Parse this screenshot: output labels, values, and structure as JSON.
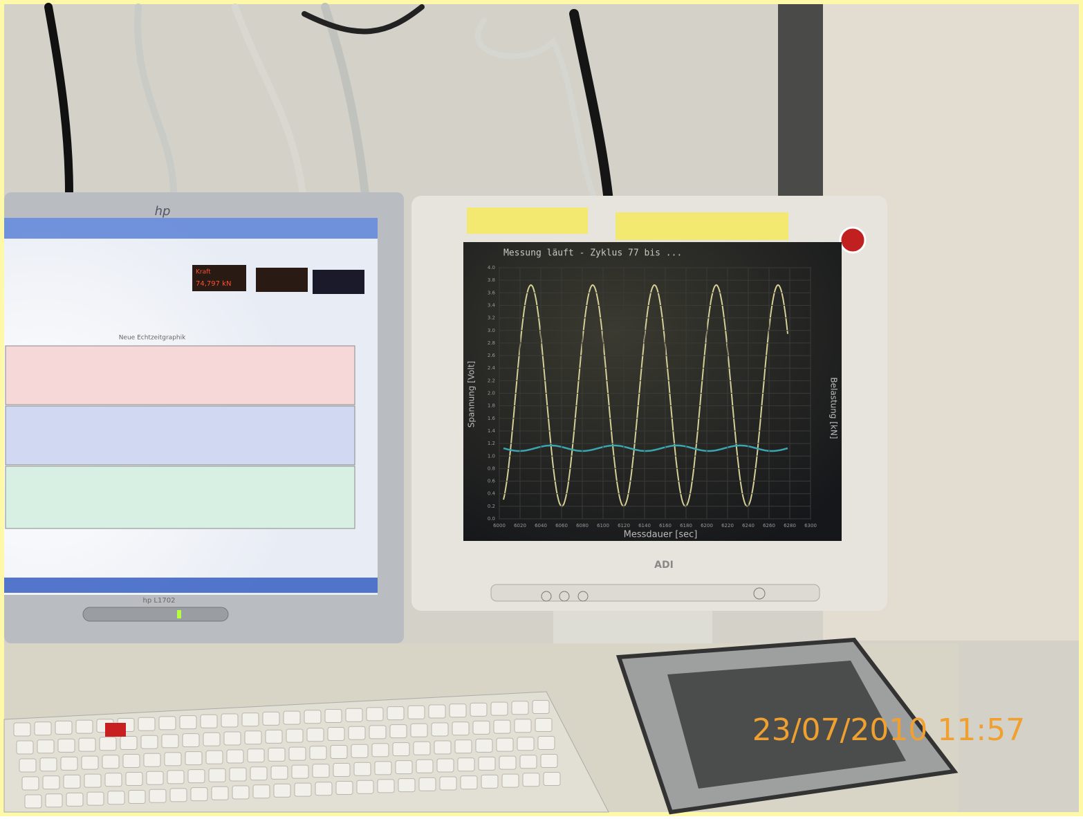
{
  "timestamp": "23/07/2010 11:57",
  "left_monitor": {
    "brand": "hp",
    "model": "hp L1702",
    "graph_title": "Neue Echtzeitgraphik",
    "readout": {
      "label": "Kraft",
      "value": "74,797 kN"
    }
  },
  "right_monitor": {
    "brand": "ADI",
    "screen_chart": {
      "title": "Messung läuft - Zyklus 77 bis ...",
      "y_label": "Spannung [Volt]",
      "y2_label": "Belastung [kN]",
      "x_label": "Messdauer [sec]",
      "ylim": [
        0,
        4
      ],
      "yticks": [
        {
          "value": 0,
          "label": "0.0"
        },
        0.2,
        0.4,
        0.6,
        0.8,
        {
          "value": 1,
          "label": "1.0"
        },
        1.2,
        1.4,
        1.6,
        1.8,
        {
          "value": 2,
          "label": "2.0"
        },
        2.2,
        2.4,
        2.6,
        2.8,
        {
          "value": 3,
          "label": "3.0"
        },
        3.2,
        3.4,
        3.6,
        3.8,
        {
          "value": 4,
          "label": "4.0"
        }
      ],
      "xlim": [
        6000,
        6300
      ],
      "xticks": [
        6000,
        6020,
        6040,
        6060,
        6080,
        6100,
        6120,
        6140,
        6160,
        6180,
        6200,
        6220,
        6240,
        6260,
        6280,
        6300
      ]
    }
  }
}
